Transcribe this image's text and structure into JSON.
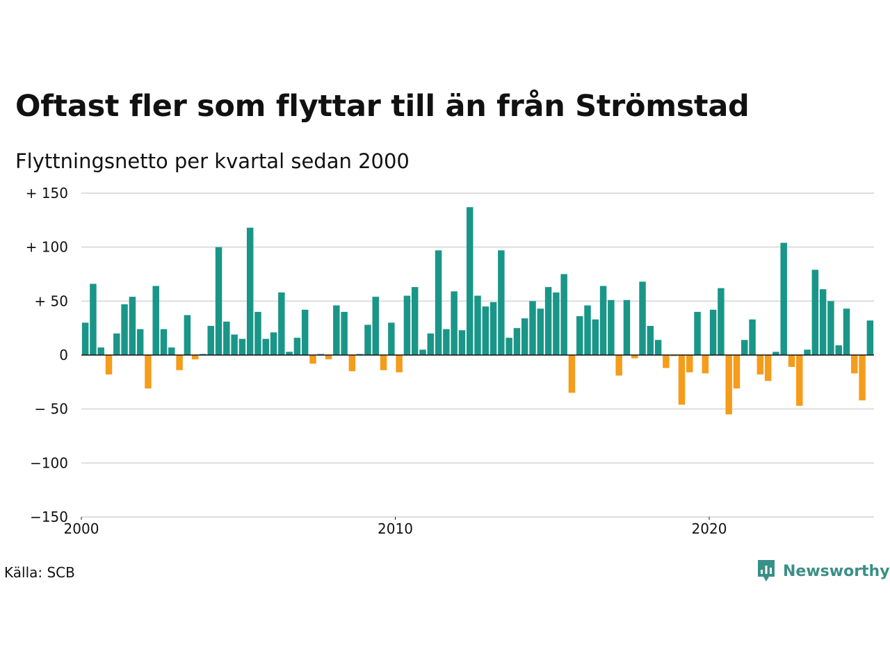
{
  "title": "Oftast fler som flyttar till än från Strömstad",
  "subtitle": "Flyttningsnetto per kvartal sedan 2000",
  "source": "Källa: SCB",
  "brand": {
    "name": "Newsworthy",
    "icon": "newsworthy-chart-bubble-icon",
    "color": "#3a8f87"
  },
  "colors": {
    "positive": "#1a9688",
    "negative": "#f59c1a",
    "grid": "#dddddd",
    "axis": "#111111"
  },
  "chart_data": {
    "type": "bar",
    "title": "Oftast fler som flyttar till än från Strömstad",
    "subtitle": "Flyttningsnetto per kvartal sedan 2000",
    "xlabel": "",
    "ylabel": "",
    "ylim": [
      -150,
      150
    ],
    "yticks": [
      150,
      100,
      50,
      0,
      -50,
      -100,
      -150
    ],
    "ytick_labels": [
      "+ 150",
      "+ 100",
      "+  50",
      "0",
      "− 50",
      "−100",
      "−150"
    ],
    "xlim": [
      2000,
      2025.25
    ],
    "xticks": [
      2000,
      2010,
      2020
    ],
    "xtick_labels": [
      "2000",
      "2010",
      "2020"
    ],
    "grid": true,
    "legend": "none",
    "start_year": 2000,
    "frequency": "quarterly",
    "categories": [
      "2000K1",
      "2000K2",
      "2000K3",
      "2000K4",
      "2001K1",
      "2001K2",
      "2001K3",
      "2001K4",
      "2002K1",
      "2002K2",
      "2002K3",
      "2002K4",
      "2003K1",
      "2003K2",
      "2003K3",
      "2003K4",
      "2004K1",
      "2004K2",
      "2004K3",
      "2004K4",
      "2005K1",
      "2005K2",
      "2005K3",
      "2005K4",
      "2006K1",
      "2006K2",
      "2006K3",
      "2006K4",
      "2007K1",
      "2007K2",
      "2007K3",
      "2007K4",
      "2008K1",
      "2008K2",
      "2008K3",
      "2008K4",
      "2009K1",
      "2009K2",
      "2009K3",
      "2009K4",
      "2010K1",
      "2010K2",
      "2010K3",
      "2010K4",
      "2011K1",
      "2011K2",
      "2011K3",
      "2011K4",
      "2012K1",
      "2012K2",
      "2012K3",
      "2012K4",
      "2013K1",
      "2013K2",
      "2013K3",
      "2013K4",
      "2014K1",
      "2014K2",
      "2014K3",
      "2014K4",
      "2015K1",
      "2015K2",
      "2015K3",
      "2015K4",
      "2016K1",
      "2016K2",
      "2016K3",
      "2016K4",
      "2017K1",
      "2017K2",
      "2017K3",
      "2017K4",
      "2018K1",
      "2018K2",
      "2018K3",
      "2018K4",
      "2019K1",
      "2019K2",
      "2019K3",
      "2019K4",
      "2020K1",
      "2020K2",
      "2020K3",
      "2020K4",
      "2021K1",
      "2021K2",
      "2021K3",
      "2021K4",
      "2022K1",
      "2022K2",
      "2022K3",
      "2022K4",
      "2023K1",
      "2023K2",
      "2023K3",
      "2023K4",
      "2024K1",
      "2024K2",
      "2024K3",
      "2024K4",
      "2025K1"
    ],
    "values": [
      30,
      66,
      7,
      -18,
      20,
      47,
      54,
      24,
      -31,
      64,
      24,
      7,
      -14,
      37,
      -4,
      1,
      27,
      100,
      31,
      19,
      15,
      118,
      40,
      15,
      21,
      58,
      3,
      16,
      42,
      -8,
      1,
      -4,
      46,
      40,
      -15,
      1,
      28,
      54,
      -14,
      30,
      -16,
      55,
      63,
      5,
      20,
      97,
      24,
      59,
      23,
      137,
      55,
      45,
      49,
      97,
      16,
      25,
      34,
      50,
      43,
      63,
      58,
      75,
      -35,
      36,
      46,
      33,
      64,
      51,
      -19,
      51,
      -3,
      68,
      27,
      14,
      -12,
      -1,
      -46,
      -16,
      40,
      -17,
      42,
      62,
      -55,
      -31,
      14,
      33,
      -18,
      -24,
      3,
      104,
      -11,
      -47,
      5,
      79,
      61,
      50,
      9,
      43,
      -17,
      -42,
      32
    ]
  }
}
